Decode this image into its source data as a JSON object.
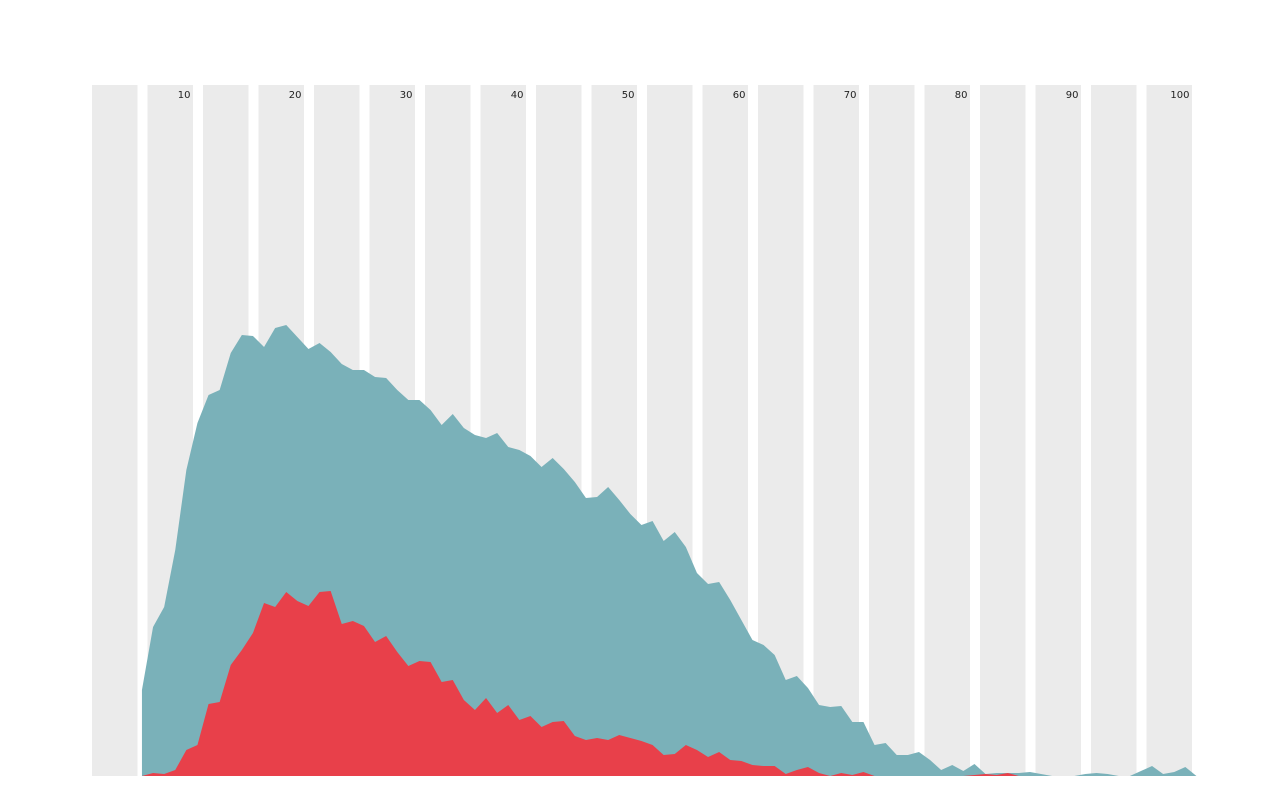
{
  "chart_data": {
    "type": "area",
    "x": [
      5,
      6,
      7,
      8,
      9,
      10,
      11,
      12,
      13,
      14,
      15,
      16,
      17,
      18,
      19,
      20,
      21,
      22,
      23,
      24,
      25,
      26,
      27,
      28,
      29,
      30,
      31,
      32,
      33,
      34,
      35,
      36,
      37,
      38,
      39,
      40,
      41,
      42,
      43,
      44,
      45,
      46,
      47,
      48,
      49,
      50,
      51,
      52,
      53,
      54,
      55,
      56,
      57,
      58,
      59,
      60,
      61,
      62,
      63,
      64,
      65,
      66,
      67,
      68,
      69,
      70,
      71,
      72,
      73,
      74,
      75,
      76,
      77,
      78,
      79,
      80,
      81,
      82,
      83,
      84,
      85,
      86,
      87,
      88,
      89,
      90,
      91,
      92,
      93,
      94,
      95,
      96,
      97,
      98,
      99,
      100
    ],
    "series": [
      {
        "color": "#7ab1b9",
        "values": [
          86,
          149,
          169,
          226,
          306,
          353,
          381,
          386,
          423,
          441,
          440,
          429,
          448,
          451,
          439,
          427,
          433,
          424,
          412,
          406,
          406,
          399,
          398,
          386,
          376,
          376,
          366,
          351,
          362,
          348,
          341,
          338,
          343,
          329,
          326,
          320,
          309,
          318,
          307,
          294,
          278,
          279,
          289,
          276,
          262,
          251,
          255,
          235,
          244,
          229,
          203,
          192,
          194,
          176,
          156,
          136,
          131,
          121,
          96,
          100,
          88,
          71,
          69,
          70,
          54,
          54,
          31,
          33,
          21,
          21,
          24,
          16,
          6,
          11,
          5,
          12,
          2,
          3,
          3,
          3,
          4,
          2,
          0,
          0,
          0,
          2,
          3,
          2,
          0,
          0,
          5,
          10,
          2,
          4,
          9,
          0
        ]
      },
      {
        "color": "#e8404a",
        "values": [
          0,
          3,
          2,
          6,
          26,
          31,
          72,
          74,
          111,
          126,
          143,
          173,
          169,
          184,
          175,
          170,
          184,
          185,
          152,
          155,
          150,
          134,
          140,
          124,
          110,
          115,
          114,
          94,
          96,
          76,
          66,
          78,
          63,
          71,
          56,
          60,
          49,
          54,
          55,
          40,
          36,
          38,
          36,
          41,
          38,
          35,
          31,
          21,
          22,
          31,
          26,
          19,
          24,
          16,
          15,
          11,
          10,
          10,
          2,
          6,
          9,
          3,
          0,
          3,
          1,
          4,
          0,
          0,
          0,
          0,
          0,
          0,
          0,
          0,
          0,
          1,
          2,
          1,
          3,
          0,
          0,
          0,
          0,
          0,
          0,
          0,
          0,
          0,
          0,
          0,
          0,
          0,
          0,
          0,
          0,
          0
        ]
      }
    ],
    "xlim": [
      0.5,
      100.5
    ],
    "ylim": [
      0,
      691
    ],
    "xticks": [
      10,
      20,
      30,
      40,
      50,
      60,
      70,
      80,
      90,
      100
    ],
    "band_color": "#ebebeb"
  }
}
